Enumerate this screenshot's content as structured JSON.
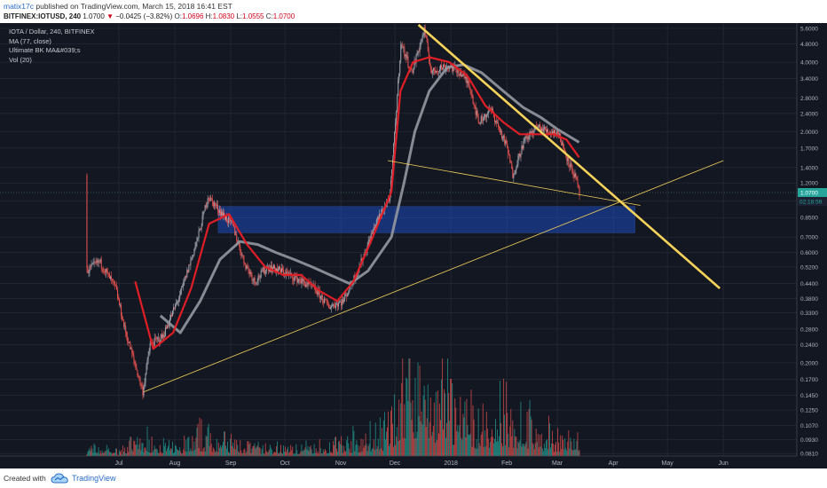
{
  "header": {
    "user": "matix17c",
    "published": " published on TradingView.com, March 15, 2018 16:41 EST",
    "symbol_line": "BITFINEX:IOTUSD, 240",
    "last": "1.0700",
    "change": "−0.0425 (−3.82%)",
    "o_label": "O:",
    "o_val": "1.0696",
    "h_label": "H:",
    "h_val": "1.0830",
    "l_label": "L:",
    "l_val": "1.0555",
    "c_label": "C:",
    "c_val": "1.0700"
  },
  "legend": {
    "title": "IOTA / Dollar, 240, BITFINEX",
    "ma": "MA (77, close)",
    "ultimate": "Ultimate BK MA&#039;s",
    "vol": "Vol (20)"
  },
  "footer": {
    "created": "Created with",
    "brand": "TradingView"
  },
  "colors": {
    "background": "#131722",
    "grid": "#2a2e39",
    "axis_text": "#b2b5be",
    "candle_up": "#a3a6af",
    "candle_down": "#ef5350",
    "ma_red": "#e01e26",
    "ma_gray": "#9598a1",
    "trendline": "#f5d25a",
    "zone": "#1e50c8",
    "price_badge": "#26a69a",
    "volume_up": "#26a69a",
    "volume_down": "#ef5350"
  },
  "chart_data": {
    "type": "candlestick",
    "title": "IOTA / Dollar, 240, BITFINEX",
    "y_scale": "log",
    "ylim": [
      0.079,
      5.8
    ],
    "y_ticks": [
      "5.6000",
      "4.8000",
      "4.0000",
      "3.4000",
      "2.8000",
      "2.4000",
      "2.0000",
      "1.7000",
      "1.4000",
      "1.2000",
      "1.0000",
      "0.8500",
      "0.7000",
      "0.6000",
      "0.5200",
      "0.4400",
      "0.3800",
      "0.3300",
      "0.2800",
      "0.2400",
      "0.2000",
      "0.1700",
      "0.1450",
      "0.1250",
      "0.1070",
      "0.0930",
      "0.0810"
    ],
    "x_labels": [
      "Jul",
      "Aug",
      "Sep",
      "Oct",
      "Nov",
      "Dec",
      "2018",
      "Feb",
      "Mar",
      "Apr",
      "May",
      "Jun"
    ],
    "current_price": "1.0700",
    "countdown": "02:18:59",
    "price_path": [
      [
        "Jun 13",
        1.3
      ],
      [
        "Jun 15",
        0.5
      ],
      [
        "Jun 22",
        0.55
      ],
      [
        "Jul 1",
        0.42
      ],
      [
        "Jul 6",
        0.28
      ],
      [
        "Jul 16",
        0.15
      ],
      [
        "Jul 20",
        0.24
      ],
      [
        "Jul 27",
        0.26
      ],
      [
        "Aug 6",
        0.4
      ],
      [
        "Aug 16",
        0.72
      ],
      [
        "Aug 21",
        1.05
      ],
      [
        "Aug 27",
        0.92
      ],
      [
        "Sep 4",
        0.78
      ],
      [
        "Sep 10",
        0.55
      ],
      [
        "Sep 16",
        0.45
      ],
      [
        "Sep 23",
        0.52
      ],
      [
        "Oct 1",
        0.5
      ],
      [
        "Oct 10",
        0.46
      ],
      [
        "Oct 19",
        0.42
      ],
      [
        "Oct 27",
        0.35
      ],
      [
        "Nov 4",
        0.37
      ],
      [
        "Nov 13",
        0.52
      ],
      [
        "Nov 22",
        0.8
      ],
      [
        "Nov 30",
        1.05
      ],
      [
        "Dec 3",
        2.2
      ],
      [
        "Dec 6",
        4.8
      ],
      [
        "Dec 9",
        4.2
      ],
      [
        "Dec 12",
        3.6
      ],
      [
        "Dec 19",
        5.5
      ],
      [
        "Dec 23",
        3.6
      ],
      [
        "Dec 28",
        3.8
      ],
      [
        "Jan 3",
        3.8
      ],
      [
        "Jan 8",
        3.6
      ],
      [
        "Jan 13",
        3.2
      ],
      [
        "Jan 18",
        2.2
      ],
      [
        "Jan 25",
        2.5
      ],
      [
        "Feb 3",
        1.7
      ],
      [
        "Feb 6",
        1.3
      ],
      [
        "Feb 12",
        1.8
      ],
      [
        "Feb 19",
        2.1
      ],
      [
        "Feb 26",
        2.0
      ],
      [
        "Mar 3",
        2.0
      ],
      [
        "Mar 8",
        1.55
      ],
      [
        "Mar 13",
        1.25
      ],
      [
        "Mar 15",
        1.07
      ]
    ],
    "ma_red": [
      [
        "Jul 12",
        0.45
      ],
      [
        "Jul 22",
        0.23
      ],
      [
        "Aug 2",
        0.27
      ],
      [
        "Aug 12",
        0.42
      ],
      [
        "Aug 22",
        0.8
      ],
      [
        "Sep 2",
        0.88
      ],
      [
        "Sep 12",
        0.65
      ],
      [
        "Sep 22",
        0.52
      ],
      [
        "Oct 2",
        0.48
      ],
      [
        "Oct 12",
        0.48
      ],
      [
        "Oct 22",
        0.41
      ],
      [
        "Nov 1",
        0.37
      ],
      [
        "Nov 10",
        0.45
      ],
      [
        "Nov 20",
        0.68
      ],
      [
        "Dec 1",
        1.1
      ],
      [
        "Dec 6",
        3.0
      ],
      [
        "Dec 13",
        4.0
      ],
      [
        "Dec 22",
        4.2
      ],
      [
        "Jan 2",
        4.0
      ],
      [
        "Jan 12",
        3.5
      ],
      [
        "Jan 22",
        2.6
      ],
      [
        "Feb 1",
        2.2
      ],
      [
        "Feb 10",
        1.95
      ],
      [
        "Feb 20",
        1.95
      ],
      [
        "Mar 1",
        1.95
      ],
      [
        "Mar 8",
        1.85
      ],
      [
        "Mar 15",
        1.55
      ]
    ],
    "ma_gray": [
      [
        "Jul 26",
        0.32
      ],
      [
        "Aug 6",
        0.27
      ],
      [
        "Aug 17",
        0.37
      ],
      [
        "Aug 28",
        0.56
      ],
      [
        "Sep 8",
        0.67
      ],
      [
        "Sep 18",
        0.65
      ],
      [
        "Sep 28",
        0.6
      ],
      [
        "Oct 8",
        0.56
      ],
      [
        "Oct 18",
        0.52
      ],
      [
        "Oct 28",
        0.48
      ],
      [
        "Nov 8",
        0.44
      ],
      [
        "Nov 18",
        0.5
      ],
      [
        "Dec 1",
        0.7
      ],
      [
        "Dec 8",
        1.2
      ],
      [
        "Dec 14",
        2.0
      ],
      [
        "Dec 22",
        3.0
      ],
      [
        "Jan 1",
        3.8
      ],
      [
        "Jan 10",
        3.9
      ],
      [
        "Jan 20",
        3.6
      ],
      [
        "Feb 1",
        3.0
      ],
      [
        "Feb 12",
        2.55
      ],
      [
        "Feb 22",
        2.3
      ],
      [
        "Mar 3",
        2.05
      ],
      [
        "Mar 15",
        1.8
      ]
    ],
    "zone": {
      "from": "Aug 27",
      "to": "Apr 15",
      "low": 0.73,
      "high": 0.95
    },
    "trendlines": [
      {
        "from": [
          "Jul 17",
          0.15
        ],
        "to": [
          "Jun 3",
          1.5
        ],
        "weight": "thin"
      },
      {
        "from": [
          "Nov 29",
          1.5
        ],
        "to": [
          "Apr 18",
          0.96
        ],
        "weight": "thin"
      },
      {
        "from": [
          "Dec 16",
          5.8
        ],
        "to": [
          "Jun 1",
          0.42
        ],
        "weight": "thick"
      }
    ],
    "volume": [
      [
        "Jul 1",
        0.5
      ],
      [
        "Jul 16",
        2.0
      ],
      [
        "Aug 1",
        1.0
      ],
      [
        "Aug 20",
        2.5
      ],
      [
        "Sep 5",
        1.5
      ],
      [
        "Sep 20",
        1.0
      ],
      [
        "Oct 10",
        1.0
      ],
      [
        "Oct 30",
        1.5
      ],
      [
        "Nov 15",
        2.0
      ],
      [
        "Nov 28",
        3.0
      ],
      [
        "Dec 6",
        7.0
      ],
      [
        "Dec 10",
        10.0
      ],
      [
        "Dec 20",
        8.0
      ],
      [
        "Jan 5",
        6.0
      ],
      [
        "Jan 15",
        4.0
      ],
      [
        "Feb 1",
        5.0
      ],
      [
        "Feb 20",
        3.0
      ],
      [
        "Mar 5",
        2.0
      ],
      [
        "Mar 15",
        1.5
      ]
    ]
  }
}
